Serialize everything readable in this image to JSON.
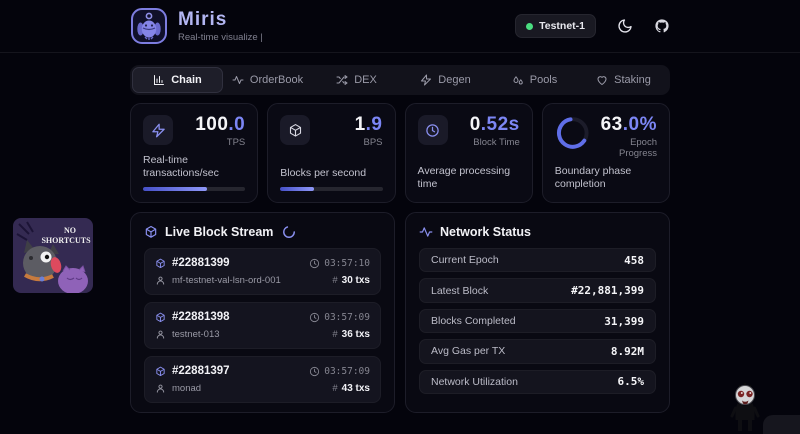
{
  "header": {
    "title": "Miris",
    "subtitle": "Real-time visualize |",
    "badge": "Testnet-1"
  },
  "tabs": [
    {
      "label": "Chain",
      "icon": "bar-chart-icon",
      "active": true
    },
    {
      "label": "OrderBook",
      "icon": "activity-icon",
      "active": false
    },
    {
      "label": "DEX",
      "icon": "shuffle-icon",
      "active": false
    },
    {
      "label": "Degen",
      "icon": "zap-icon",
      "active": false
    },
    {
      "label": "Pools",
      "icon": "droplets-icon",
      "active": false
    },
    {
      "label": "Staking",
      "icon": "heart-icon",
      "active": false
    }
  ],
  "stats": [
    {
      "icon": "zap-icon",
      "value_main": "100",
      "value_accent": ".0",
      "unit": "TPS",
      "description": "Real-time transactions/sec",
      "progress": 63
    },
    {
      "icon": "cube-icon",
      "value_main": "1",
      "value_accent": ".9",
      "unit": "BPS",
      "description": "Blocks per second",
      "progress": 33
    },
    {
      "icon": "clock-icon",
      "value_main": "0",
      "value_accent": ".52s",
      "unit": "Block Time",
      "description": "Average processing time"
    },
    {
      "icon": "progress-ring",
      "value_main": "63",
      "value_accent": ".0%",
      "unit": "Epoch Progress",
      "description": "Boundary phase completion",
      "ring": 63
    }
  ],
  "block_stream": {
    "title": "Live Block Stream",
    "blocks": [
      {
        "number": "#22881399",
        "time": "03:57:10",
        "validator": "mf-testnet-val-lsn-ord-001",
        "txs": "30 txs"
      },
      {
        "number": "#22881398",
        "time": "03:57:09",
        "validator": "testnet-013",
        "txs": "36 txs"
      },
      {
        "number": "#22881397",
        "time": "03:57:09",
        "validator": "monad",
        "txs": "43 txs"
      }
    ]
  },
  "network_status": {
    "title": "Network Status",
    "rows": [
      {
        "label": "Current Epoch",
        "value": "458"
      },
      {
        "label": "Latest Block",
        "value": "#22,881,399"
      },
      {
        "label": "Blocks Completed",
        "value": "31,399"
      },
      {
        "label": "Avg Gas per TX",
        "value": "8.92M"
      },
      {
        "label": "Network Utilization",
        "value": "6.5%"
      }
    ]
  },
  "symbols": {
    "hash": "#"
  },
  "overlays": {
    "sticker": {
      "line1": "NO",
      "line2": "SHORTCUTS"
    }
  },
  "colors": {
    "accent": "#7c86f5",
    "accent_deep": "#4650c8",
    "green": "#4ade80",
    "background": "#04040c",
    "card": "#0a0a14"
  }
}
